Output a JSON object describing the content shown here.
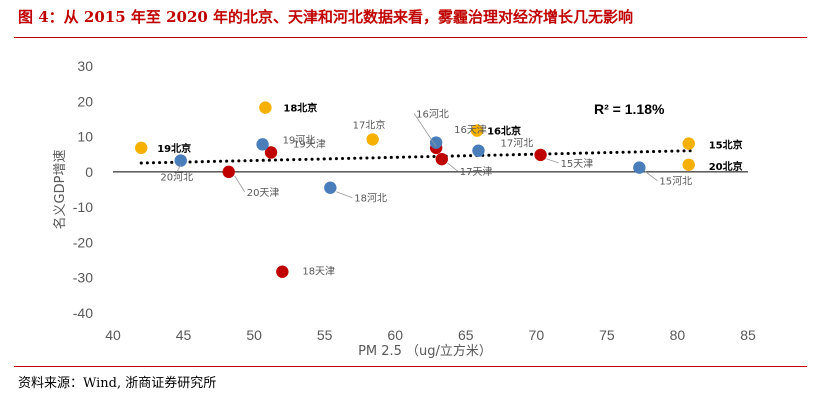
{
  "title": "图 4：从 2015 年至 2020 年的北京、天津和河北数据来看，雾霾治理对经济增长几无影响",
  "source": "资料来源：Wind, 浙商证券研究所",
  "colors": {
    "beijing": "#f5b000",
    "tianjin": "#c00000",
    "hebei": "#4a7ebb",
    "title": "#c00000"
  },
  "chart_data": {
    "type": "scatter",
    "xlabel": "PM 2.5 （ug/立方米）",
    "ylabel": "名义GDP增速",
    "xlim": [
      40,
      85
    ],
    "ylim": [
      -40,
      30
    ],
    "xticks": [
      "40",
      "45",
      "50",
      "55",
      "60",
      "65",
      "70",
      "75",
      "80",
      "85"
    ],
    "yticks": [
      "30",
      "20",
      "10",
      "0",
      "-10",
      "-20",
      "-30",
      "-40"
    ],
    "annotation": "R² = 1.18%",
    "trendline": {
      "x": [
        42,
        81
      ],
      "y": [
        2.5,
        6.0
      ]
    },
    "points": [
      {
        "label": "15北京",
        "x": 80.8,
        "y": 8.0,
        "group": "beijing",
        "bold": true
      },
      {
        "label": "16北京",
        "x": 65.8,
        "y": 11.7,
        "group": "beijing",
        "bold": true
      },
      {
        "label": "17北京",
        "x": 58.4,
        "y": 9.2,
        "group": "beijing",
        "bold": false
      },
      {
        "label": "18北京",
        "x": 50.8,
        "y": 18.2,
        "group": "beijing",
        "bold": true
      },
      {
        "label": "19北京",
        "x": 42.0,
        "y": 6.8,
        "group": "beijing",
        "bold": true
      },
      {
        "label": "20北京",
        "x": 80.8,
        "y": 2.0,
        "group": "beijing",
        "bold": true
      },
      {
        "label": "15天津",
        "x": 70.3,
        "y": 4.8,
        "group": "tianjin",
        "bold": false
      },
      {
        "label": "16天津",
        "x": 62.9,
        "y": 6.8,
        "group": "tianjin",
        "bold": false
      },
      {
        "label": "17天津",
        "x": 63.3,
        "y": 3.6,
        "group": "tianjin",
        "bold": false
      },
      {
        "label": "18天津",
        "x": 52.0,
        "y": -28.3,
        "group": "tianjin",
        "bold": false
      },
      {
        "label": "19天津",
        "x": 51.2,
        "y": 5.5,
        "group": "tianjin",
        "bold": false
      },
      {
        "label": "20天津",
        "x": 48.2,
        "y": 0.0,
        "group": "tianjin",
        "bold": false
      },
      {
        "label": "15河北",
        "x": 77.3,
        "y": 1.2,
        "group": "hebei",
        "bold": false
      },
      {
        "label": "16河北",
        "x": 62.9,
        "y": 8.3,
        "group": "hebei",
        "bold": false
      },
      {
        "label": "17河北",
        "x": 65.9,
        "y": 6.0,
        "group": "hebei",
        "bold": false
      },
      {
        "label": "18河北",
        "x": 55.4,
        "y": -4.5,
        "group": "hebei",
        "bold": false
      },
      {
        "label": "19河北",
        "x": 50.6,
        "y": 7.8,
        "group": "hebei",
        "bold": false
      },
      {
        "label": "20河北",
        "x": 44.8,
        "y": 3.2,
        "group": "hebei",
        "bold": false
      }
    ]
  }
}
